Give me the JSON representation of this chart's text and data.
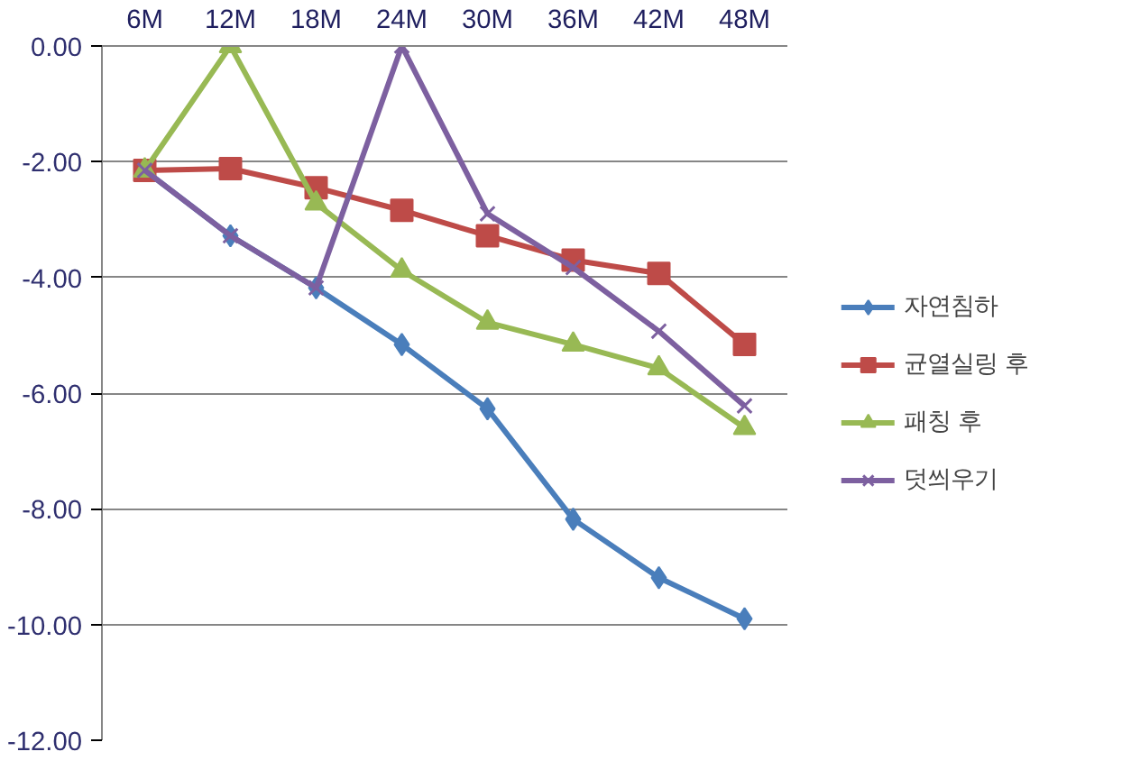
{
  "chart_data": {
    "type": "line",
    "categories": [
      "6M",
      "12M",
      "18M",
      "24M",
      "30M",
      "36M",
      "42M",
      "48M"
    ],
    "ylim": [
      -12,
      0
    ],
    "yticks": [
      {
        "value": 0,
        "label": "0.00"
      },
      {
        "value": -2,
        "label": "-2.00"
      },
      {
        "value": -4,
        "label": "-4.00"
      },
      {
        "value": -6,
        "label": "-6.00"
      },
      {
        "value": -8,
        "label": "-8.00"
      },
      {
        "value": -10,
        "label": "-10.00"
      },
      {
        "value": -12,
        "label": "-12.00"
      }
    ],
    "grid": "y",
    "legend": "right",
    "line_style": "solid",
    "series": [
      {
        "name": "자연침하",
        "color": "#4a7ebb",
        "marker": "diamond",
        "values": [
          -2.15,
          -3.28,
          -4.18,
          -5.16,
          -6.27,
          -8.18,
          -9.19,
          -9.9
        ]
      },
      {
        "name": "균열실링 후",
        "color": "#be4b48",
        "marker": "square",
        "values": [
          -2.15,
          -2.12,
          -2.45,
          -2.84,
          -3.28,
          -3.7,
          -3.93,
          -5.16
        ]
      },
      {
        "name": "패칭 후",
        "color": "#98b954",
        "marker": "triangle",
        "values": [
          -2.15,
          0,
          -2.72,
          -3.88,
          -4.78,
          -5.16,
          -5.57,
          -6.6
        ]
      },
      {
        "name": "덧씌우기",
        "color": "#7d60a0",
        "marker": "cross",
        "values": [
          -2.15,
          -3.28,
          -4.18,
          0,
          -2.9,
          -3.83,
          -4.93,
          -6.22
        ]
      }
    ]
  }
}
